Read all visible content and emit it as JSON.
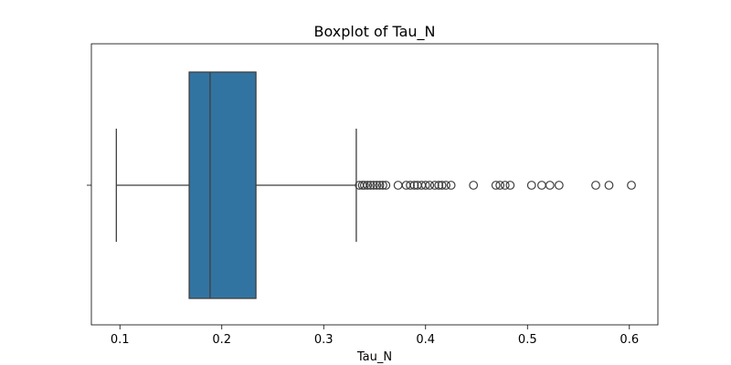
{
  "chart_data": {
    "type": "boxplot",
    "title": "Boxplot of Tau_N",
    "xlabel": "Tau_N",
    "ylabel": "",
    "xlim": [
      0.072,
      0.628
    ],
    "x_ticks": [
      0.1,
      0.2,
      0.3,
      0.4,
      0.5,
      0.6
    ],
    "x_tick_labels": [
      "0.1",
      "0.2",
      "0.3",
      "0.4",
      "0.5",
      "0.6"
    ],
    "orientation": "horizontal",
    "grid": false,
    "box": {
      "whisker_low": 0.0965,
      "q1": 0.168,
      "median": 0.1885,
      "q3": 0.2335,
      "whisker_high": 0.332,
      "fill_color": "#3274a1",
      "line_color": "#3f3f3f"
    },
    "outliers": [
      0.335,
      0.338,
      0.34,
      0.343,
      0.346,
      0.349,
      0.352,
      0.355,
      0.358,
      0.361,
      0.373,
      0.381,
      0.385,
      0.389,
      0.392,
      0.396,
      0.4,
      0.404,
      0.409,
      0.413,
      0.416,
      0.42,
      0.425,
      0.447,
      0.469,
      0.473,
      0.478,
      0.483,
      0.504,
      0.514,
      0.522,
      0.531,
      0.567,
      0.58,
      0.602
    ]
  }
}
